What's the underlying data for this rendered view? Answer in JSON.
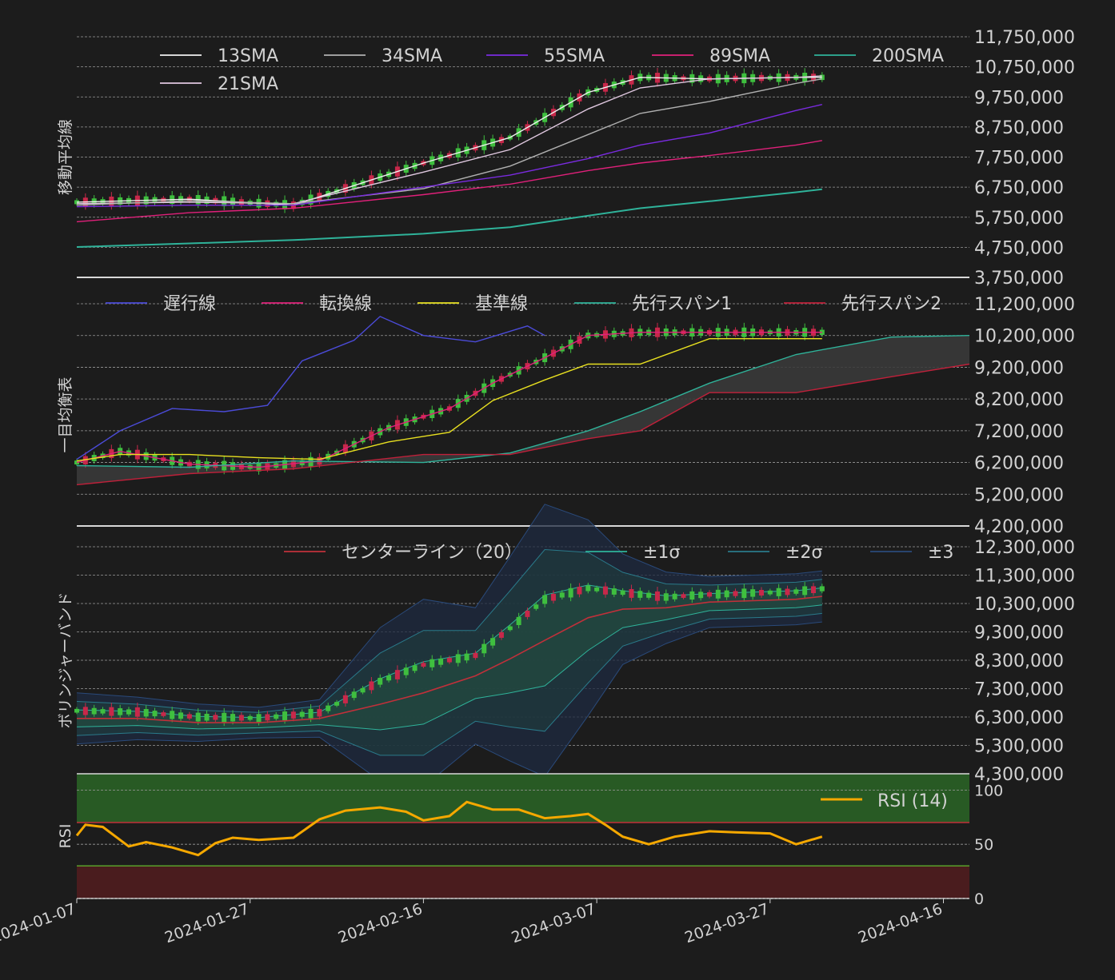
{
  "chart_data": [
    {
      "type": "candlestick+line",
      "ylabel": "移動平均線",
      "ylim": [
        3750000,
        11750000
      ],
      "yticks": [
        "3,750,000",
        "4,750,000",
        "5,750,000",
        "6,750,000",
        "7,750,000",
        "8,750,000",
        "9,750,000",
        "10,750,000",
        "11,750,000"
      ],
      "legend": [
        "13SMA",
        "34SMA",
        "55SMA",
        "89SMA",
        "200SMA",
        "21SMA"
      ],
      "colors": {
        "13SMA": "#f0f0f0",
        "21SMA": "#e0c8e0",
        "34SMA": "#b0b0b0",
        "55SMA": "#7a2be0",
        "89SMA": "#e0207a",
        "200SMA": "#2fb39a"
      },
      "series": [
        {
          "name": "13SMA",
          "x": [
            "2024-01-07",
            "2024-01-20",
            "2024-02-01",
            "2024-02-16",
            "2024-02-26",
            "2024-03-06",
            "2024-03-12",
            "2024-03-20",
            "2024-03-30",
            "2024-04-02"
          ],
          "values": [
            6250000,
            6350000,
            6150000,
            7550000,
            8400000,
            9900000,
            10400000,
            10350000,
            10400000,
            10400000
          ]
        },
        {
          "name": "21SMA",
          "x": [
            "2024-01-07",
            "2024-01-20",
            "2024-02-01",
            "2024-02-16",
            "2024-02-26",
            "2024-03-06",
            "2024-03-12",
            "2024-03-20",
            "2024-03-30",
            "2024-04-02"
          ],
          "values": [
            6200000,
            6250000,
            6200000,
            7250000,
            8000000,
            9350000,
            10050000,
            10350000,
            10400000,
            10450000
          ]
        },
        {
          "name": "34SMA",
          "x": [
            "2024-01-07",
            "2024-01-20",
            "2024-02-01",
            "2024-02-16",
            "2024-02-26",
            "2024-03-06",
            "2024-03-12",
            "2024-03-20",
            "2024-03-30",
            "2024-04-02"
          ],
          "values": [
            6150000,
            6300000,
            6200000,
            6700000,
            7450000,
            8500000,
            9200000,
            9600000,
            10200000,
            10350000
          ]
        },
        {
          "name": "55SMA",
          "x": [
            "2024-01-07",
            "2024-01-20",
            "2024-02-01",
            "2024-02-16",
            "2024-02-26",
            "2024-03-06",
            "2024-03-12",
            "2024-03-20",
            "2024-03-30",
            "2024-04-02"
          ],
          "values": [
            6100000,
            6150000,
            6150000,
            6750000,
            7150000,
            7700000,
            8150000,
            8550000,
            9300000,
            9500000
          ]
        },
        {
          "name": "89SMA",
          "x": [
            "2024-01-07",
            "2024-01-20",
            "2024-02-01",
            "2024-02-16",
            "2024-02-26",
            "2024-03-06",
            "2024-03-12",
            "2024-03-20",
            "2024-03-30",
            "2024-04-02"
          ],
          "values": [
            5600000,
            5900000,
            6050000,
            6500000,
            6850000,
            7300000,
            7550000,
            7800000,
            8150000,
            8300000
          ]
        },
        {
          "name": "200SMA",
          "x": [
            "2024-01-07",
            "2024-01-20",
            "2024-02-01",
            "2024-02-16",
            "2024-02-26",
            "2024-03-06",
            "2024-03-12",
            "2024-03-20",
            "2024-03-30",
            "2024-04-02"
          ],
          "values": [
            4760000,
            4880000,
            4990000,
            5200000,
            5420000,
            5800000,
            6050000,
            6280000,
            6580000,
            6680000
          ]
        }
      ]
    },
    {
      "type": "candlestick+line",
      "ylabel": "一目均衡表",
      "ylim": [
        4200000,
        11200000
      ],
      "yticks": [
        "4,200,000",
        "5,200,000",
        "6,200,000",
        "7,200,000",
        "8,200,000",
        "9,200,000",
        "10,200,000",
        "11,200,000"
      ],
      "legend": [
        "遅行線",
        "転換線",
        "基準線",
        "先行スパン1",
        "先行スパン2"
      ],
      "colors": {
        "遅行線": "#4b4bd8",
        "転換線": "#e0207a",
        "基準線": "#e8e020",
        "先行スパン1": "#2fb39a",
        "先行スパン2": "#c0203a"
      },
      "series": [
        {
          "name": "遅行線",
          "x": [
            "2024-01-07",
            "2024-01-12",
            "2024-01-18",
            "2024-01-24",
            "2024-01-29",
            "2024-02-02",
            "2024-02-08",
            "2024-02-11",
            "2024-02-16",
            "2024-02-22",
            "2024-02-28",
            "2024-03-01"
          ],
          "values": [
            6300000,
            7200000,
            7900000,
            7800000,
            8000000,
            9400000,
            10050000,
            10800000,
            10200000,
            10000000,
            10500000,
            10200000
          ]
        },
        {
          "name": "転換線",
          "x": [
            "2024-01-07",
            "2024-01-12",
            "2024-01-20",
            "2024-01-28",
            "2024-02-04",
            "2024-02-12",
            "2024-02-19",
            "2024-02-24",
            "2024-03-01",
            "2024-03-06",
            "2024-03-12",
            "2024-03-20",
            "2024-03-30",
            "2024-04-02"
          ],
          "values": [
            6200000,
            6550000,
            6150000,
            6050000,
            6250000,
            7300000,
            7900000,
            8700000,
            9500000,
            10200000,
            10300000,
            10300000,
            10300000,
            10300000
          ]
        },
        {
          "name": "基準線",
          "x": [
            "2024-01-07",
            "2024-01-12",
            "2024-01-20",
            "2024-01-28",
            "2024-02-04",
            "2024-02-12",
            "2024-02-19",
            "2024-02-24",
            "2024-03-01",
            "2024-03-06",
            "2024-03-12",
            "2024-03-20",
            "2024-03-30",
            "2024-04-02"
          ],
          "values": [
            6250000,
            6450000,
            6450000,
            6350000,
            6300000,
            6850000,
            7150000,
            8150000,
            8800000,
            9300000,
            9300000,
            10100000,
            10100000,
            10100000
          ]
        },
        {
          "name": "先行スパン1",
          "x": [
            "2024-01-07",
            "2024-01-20",
            "2024-02-01",
            "2024-02-16",
            "2024-02-26",
            "2024-03-06",
            "2024-03-12",
            "2024-03-20",
            "2024-03-30",
            "2024-04-10",
            "2024-04-19"
          ],
          "values": [
            6100000,
            6050000,
            6250000,
            6200000,
            6500000,
            7200000,
            7800000,
            8700000,
            9600000,
            10150000,
            10200000
          ]
        },
        {
          "name": "先行スパン2",
          "x": [
            "2024-01-07",
            "2024-01-20",
            "2024-02-01",
            "2024-02-16",
            "2024-02-26",
            "2024-03-06",
            "2024-03-12",
            "2024-03-20",
            "2024-03-30",
            "2024-04-10",
            "2024-04-19"
          ],
          "values": [
            5500000,
            5850000,
            6000000,
            6450000,
            6450000,
            6950000,
            7200000,
            8400000,
            8400000,
            8900000,
            9300000
          ]
        }
      ]
    },
    {
      "type": "candlestick+band",
      "ylabel": "ボリンジャーバンド",
      "ylim": [
        4300000,
        12300000
      ],
      "yticks": [
        "4,300,000",
        "5,300,000",
        "6,300,000",
        "7,300,000",
        "8,300,000",
        "9,300,000",
        "10,300,000",
        "11,300,000",
        "12,300,000"
      ],
      "legend": [
        "センターライン（20）",
        "±1σ",
        "±2σ",
        "±3"
      ],
      "colors": {
        "center": "#c0303a",
        "sigma1": "#2fb39a",
        "sigma2": "#2a7a8a",
        "sigma3": "#2a4a7a"
      },
      "x": [
        "2024-01-07",
        "2024-01-14",
        "2024-01-21",
        "2024-01-28",
        "2024-02-04",
        "2024-02-11",
        "2024-02-16",
        "2024-02-22",
        "2024-02-26",
        "2024-03-01",
        "2024-03-06",
        "2024-03-10",
        "2024-03-15",
        "2024-03-20",
        "2024-03-25",
        "2024-03-30",
        "2024-04-02"
      ],
      "center": [
        6250000,
        6250000,
        6100000,
        6100000,
        6250000,
        6750000,
        7150000,
        7750000,
        8350000,
        9000000,
        9800000,
        10100000,
        10150000,
        10350000,
        10400000,
        10450000,
        10550000
      ],
      "sd": [
        300000,
        250000,
        220000,
        180000,
        220000,
        900000,
        1100000,
        800000,
        1200000,
        1600000,
        1150000,
        650000,
        420000,
        300000,
        300000,
        300000,
        300000
      ]
    },
    {
      "type": "line",
      "ylabel": "RSI",
      "ylim": [
        0,
        115
      ],
      "yticks": [
        "0",
        "50",
        "100"
      ],
      "legend": [
        "RSI (14)"
      ],
      "colors": {
        "RSI (14)": "#f5a800",
        "overbought": "#285a24",
        "oversold": "#4a1c1e"
      },
      "bands": {
        "overbought": 70,
        "oversold": 30
      },
      "series": [
        {
          "name": "RSI (14)",
          "x": [
            "2024-01-07",
            "2024-01-08",
            "2024-01-10",
            "2024-01-13",
            "2024-01-15",
            "2024-01-18",
            "2024-01-21",
            "2024-01-23",
            "2024-01-25",
            "2024-01-28",
            "2024-02-01",
            "2024-02-04",
            "2024-02-07",
            "2024-02-11",
            "2024-02-14",
            "2024-02-16",
            "2024-02-19",
            "2024-02-21",
            "2024-02-24",
            "2024-02-27",
            "2024-03-01",
            "2024-03-04",
            "2024-03-06",
            "2024-03-08",
            "2024-03-10",
            "2024-03-13",
            "2024-03-16",
            "2024-03-20",
            "2024-03-23",
            "2024-03-27",
            "2024-03-30",
            "2024-04-02"
          ],
          "values": [
            58,
            68,
            66,
            48,
            52,
            47,
            40,
            51,
            56,
            54,
            56,
            73,
            81,
            84,
            80,
            72,
            76,
            89,
            82,
            82,
            74,
            76,
            78,
            68,
            57,
            50,
            57,
            62,
            61,
            60,
            50,
            57
          ]
        }
      ]
    }
  ],
  "x_axis": {
    "ticks": [
      "2024-01-07",
      "2024-01-27",
      "2024-02-16",
      "2024-03-07",
      "2024-03-27",
      "2024-04-16"
    ],
    "start": "2024-01-07",
    "end": "2024-04-19"
  }
}
